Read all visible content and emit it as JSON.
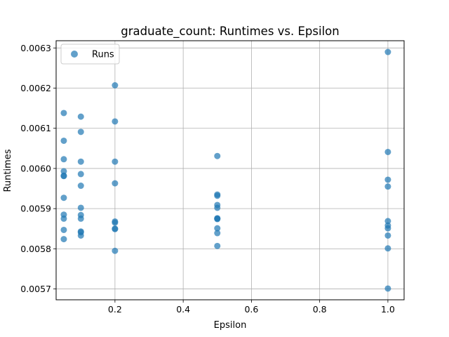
{
  "chart_data": {
    "type": "scatter",
    "title": "graduate_count: Runtimes vs. Epsilon",
    "xlabel": "Epsilon",
    "ylabel": "Runtimes",
    "xlim": [
      0.0275,
      1.0475
    ],
    "ylim": [
      0.005673,
      0.006318
    ],
    "xticks": [
      0.2,
      0.4,
      0.6,
      0.8,
      1.0
    ],
    "xtick_labels": [
      "0.2",
      "0.4",
      "0.6",
      "0.8",
      "1.0"
    ],
    "yticks": [
      0.0057,
      0.0058,
      0.0059,
      0.006,
      0.0061,
      0.0062,
      0.0063
    ],
    "ytick_labels": [
      "0.0057",
      "0.0058",
      "0.0059",
      "0.0060",
      "0.0061",
      "0.0062",
      "0.0063"
    ],
    "grid": true,
    "legend_position": "top-left",
    "series": [
      {
        "name": "Runs",
        "color": "#1f77b4",
        "x": [
          0.05,
          0.05,
          0.05,
          0.05,
          0.05,
          0.05,
          0.05,
          0.05,
          0.05,
          0.05,
          0.05,
          0.1,
          0.1,
          0.1,
          0.1,
          0.1,
          0.1,
          0.1,
          0.1,
          0.1,
          0.1,
          0.1,
          0.2,
          0.2,
          0.2,
          0.2,
          0.2,
          0.2,
          0.2,
          0.2,
          0.2,
          0.5,
          0.5,
          0.5,
          0.5,
          0.5,
          0.5,
          0.5,
          0.5,
          0.5,
          0.5,
          0.5,
          1.0,
          1.0,
          1.0,
          1.0,
          1.0,
          1.0,
          1.0,
          1.0,
          1.0,
          1.0
        ],
        "y": [
          0.006138,
          0.006069,
          0.006023,
          0.005993,
          0.005981,
          0.005927,
          0.005885,
          0.005875,
          0.005847,
          0.005824,
          0.005982,
          0.006129,
          0.006091,
          0.006017,
          0.005986,
          0.005957,
          0.005902,
          0.005884,
          0.005875,
          0.005841,
          0.005833,
          0.005843,
          0.006207,
          0.006117,
          0.006017,
          0.005963,
          0.005868,
          0.005865,
          0.00585,
          0.005849,
          0.005795,
          0.006031,
          0.005935,
          0.005932,
          0.005909,
          0.005902,
          0.005876,
          0.005874,
          0.005851,
          0.005839,
          0.005807,
          0.005875,
          0.00629,
          0.006041,
          0.005972,
          0.005955,
          0.005869,
          0.005858,
          0.005851,
          0.005833,
          0.005801,
          0.005701
        ]
      }
    ]
  }
}
